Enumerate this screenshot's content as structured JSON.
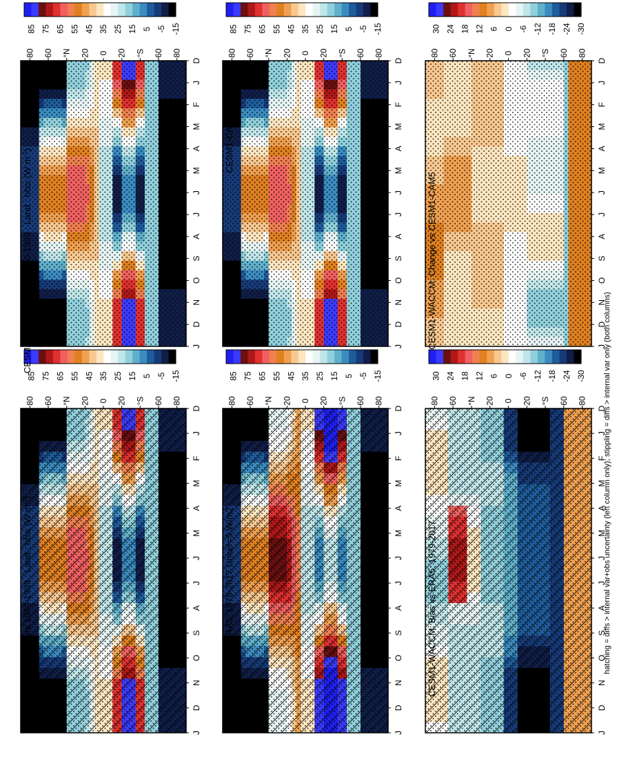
{
  "footer_note": "hatching = diffs > internal var+obs uncertainty (left column only); stippling = diffs > internal var only (both columns)",
  "chart_data": [
    {
      "type": "heatmap",
      "title": "CESM1-WACCM: Years 1980-1999 : Land : hfss (W m",
      "months": [
        "D",
        "J",
        "F",
        "M",
        "A",
        "M",
        "J",
        "J",
        "A",
        "S",
        "O",
        "N",
        "D",
        "J"
      ],
      "lat_ticks": [
        "80",
        "60",
        "°N",
        "20",
        "0",
        "20",
        "°S",
        "60",
        "80"
      ],
      "hatching": true,
      "stippling": true,
      "palette": "abs",
      "colorbar": "cb1"
    },
    {
      "type": "heatmap",
      "title": "CESM1-WACCM: Years 1980-1999 : Land : hfss (W m",
      "months": [
        "D",
        "J",
        "F",
        "M",
        "A",
        "M",
        "J",
        "J",
        "A",
        "S",
        "O",
        "N",
        "D",
        "J"
      ],
      "lat_ticks": [
        "80",
        "60",
        "°N",
        "20",
        "0",
        "20",
        "°S",
        "60",
        "80"
      ],
      "hatching": false,
      "stippling": true,
      "palette": "abs",
      "colorbar": "cb2"
    },
    {
      "type": "heatmap",
      "title": "ERA5: 1979-2017 Uncer=5 W/m2",
      "months": [
        "D",
        "J",
        "F",
        "M",
        "A",
        "M",
        "J",
        "J",
        "A",
        "S",
        "O",
        "N",
        "D",
        "J"
      ],
      "lat_ticks": [
        "80",
        "60",
        "°N",
        "20",
        "0",
        "20",
        "°S",
        "60",
        "80"
      ],
      "hatching": true,
      "stippling": true,
      "palette": "abs",
      "colorbar": "cb3"
    },
    {
      "type": "heatmap",
      "title": "CESM1-CAM5",
      "months": [
        "D",
        "J",
        "F",
        "M",
        "A",
        "M",
        "J",
        "J",
        "A",
        "S",
        "O",
        "N",
        "D",
        "J"
      ],
      "lat_ticks": [
        "80",
        "60",
        "°N",
        "20",
        "0",
        "20",
        "°S",
        "60",
        "80"
      ],
      "hatching": false,
      "stippling": true,
      "palette": "abs",
      "colorbar": "cb4"
    },
    {
      "type": "heatmap",
      "title": "CESM1-WACCM: Bias vs ERA5: 1979-2017",
      "months": [
        "D",
        "J",
        "F",
        "M",
        "A",
        "M",
        "J",
        "J",
        "A",
        "S",
        "O",
        "N",
        "D",
        "J"
      ],
      "lat_ticks": [
        "80",
        "60",
        "°N",
        "20",
        "0",
        "20",
        "°S",
        "60",
        "80"
      ],
      "hatching": true,
      "stippling": true,
      "palette": "diff",
      "colorbar": "cb5"
    },
    {
      "type": "heatmap",
      "title": "CESM1-WACCM: Change vs CESM1-CAM5",
      "months": [
        "D",
        "J",
        "F",
        "M",
        "A",
        "M",
        "J",
        "J",
        "A",
        "S",
        "O",
        "N",
        "D",
        "J"
      ],
      "lat_ticks": [
        "80",
        "60",
        "°N",
        "20",
        "0",
        "20",
        "°S",
        "60",
        "80"
      ],
      "hatching": false,
      "stippling": true,
      "palette": "diff",
      "colorbar": "cb6"
    }
  ],
  "colorbars": {
    "abs_labels": [
      "85",
      "75",
      "65",
      "55",
      "45",
      "35",
      "25",
      "15",
      "5",
      "-5",
      "-15"
    ],
    "diff_labels": [
      "30",
      "24",
      "18",
      "12",
      "6",
      "0",
      "-6",
      "-12",
      "-18",
      "-24",
      "-30"
    ],
    "abs_colors": [
      "#1f1ff0",
      "#3b3bff",
      "#6a1010",
      "#b01818",
      "#e03030",
      "#f06060",
      "#f08050",
      "#e08020",
      "#f0a050",
      "#f8c890",
      "#fde6c0",
      "#ffffff",
      "#e6f4f4",
      "#c0e6ea",
      "#90d0dc",
      "#60b0cc",
      "#3a8cc0",
      "#1f5c9c",
      "#173a78",
      "#101e48",
      "#000000"
    ],
    "diff_colors": [
      "#1f1ff0",
      "#3b3bff",
      "#6a1010",
      "#b01818",
      "#e03030",
      "#f06060",
      "#f08050",
      "#e08020",
      "#f0a050",
      "#f8c890",
      "#fde6c0",
      "#ffffff",
      "#e6f4f4",
      "#c0e6ea",
      "#90d0dc",
      "#60b0cc",
      "#3a8cc0",
      "#1f5c9c",
      "#173a78",
      "#101e48",
      "#000000"
    ]
  }
}
